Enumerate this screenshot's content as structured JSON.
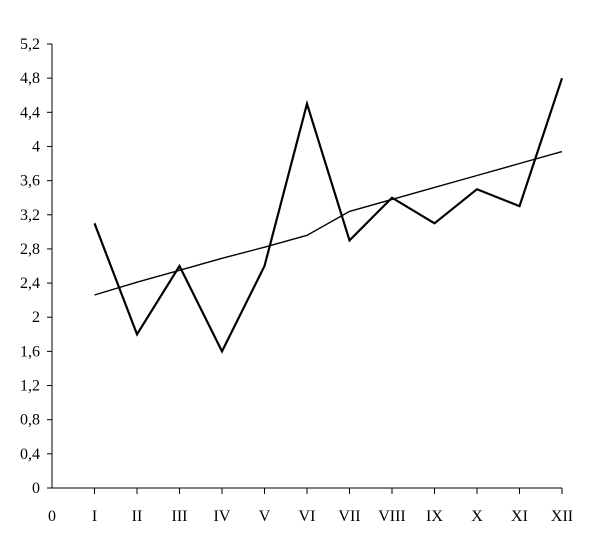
{
  "chart_data": {
    "type": "line",
    "categories": [
      "I",
      "II",
      "III",
      "IV",
      "V",
      "VI",
      "VII",
      "VIII",
      "IX",
      "X",
      "XI",
      "XII"
    ],
    "origin_label": "0",
    "ylim": [
      0,
      5.2
    ],
    "yticks": [
      0,
      0.4,
      0.8,
      1.2,
      1.6,
      2,
      2.4,
      2.8,
      3.2,
      3.6,
      4,
      4.4,
      4.8,
      5.2
    ],
    "ytick_labels": [
      "0",
      "0,4",
      "0,8",
      "1,2",
      "1,6",
      "2",
      "2,4",
      "2,8",
      "3,2",
      "3,6",
      "4",
      "4,4",
      "4,8",
      "5,2"
    ],
    "series": [
      {
        "values": [
          3.1,
          1.8,
          2.6,
          1.6,
          2.6,
          4.5,
          2.9,
          3.4,
          3.1,
          3.5,
          3.3,
          4.8
        ],
        "color": "#000000",
        "style": "thick"
      },
      {
        "values": [
          2.26,
          2.41,
          2.55,
          2.69,
          2.82,
          2.96,
          3.24,
          3.38,
          3.52,
          3.66,
          3.8,
          3.94
        ],
        "color": "#000000",
        "style": "thin"
      }
    ],
    "grid": false,
    "legend": "none"
  }
}
